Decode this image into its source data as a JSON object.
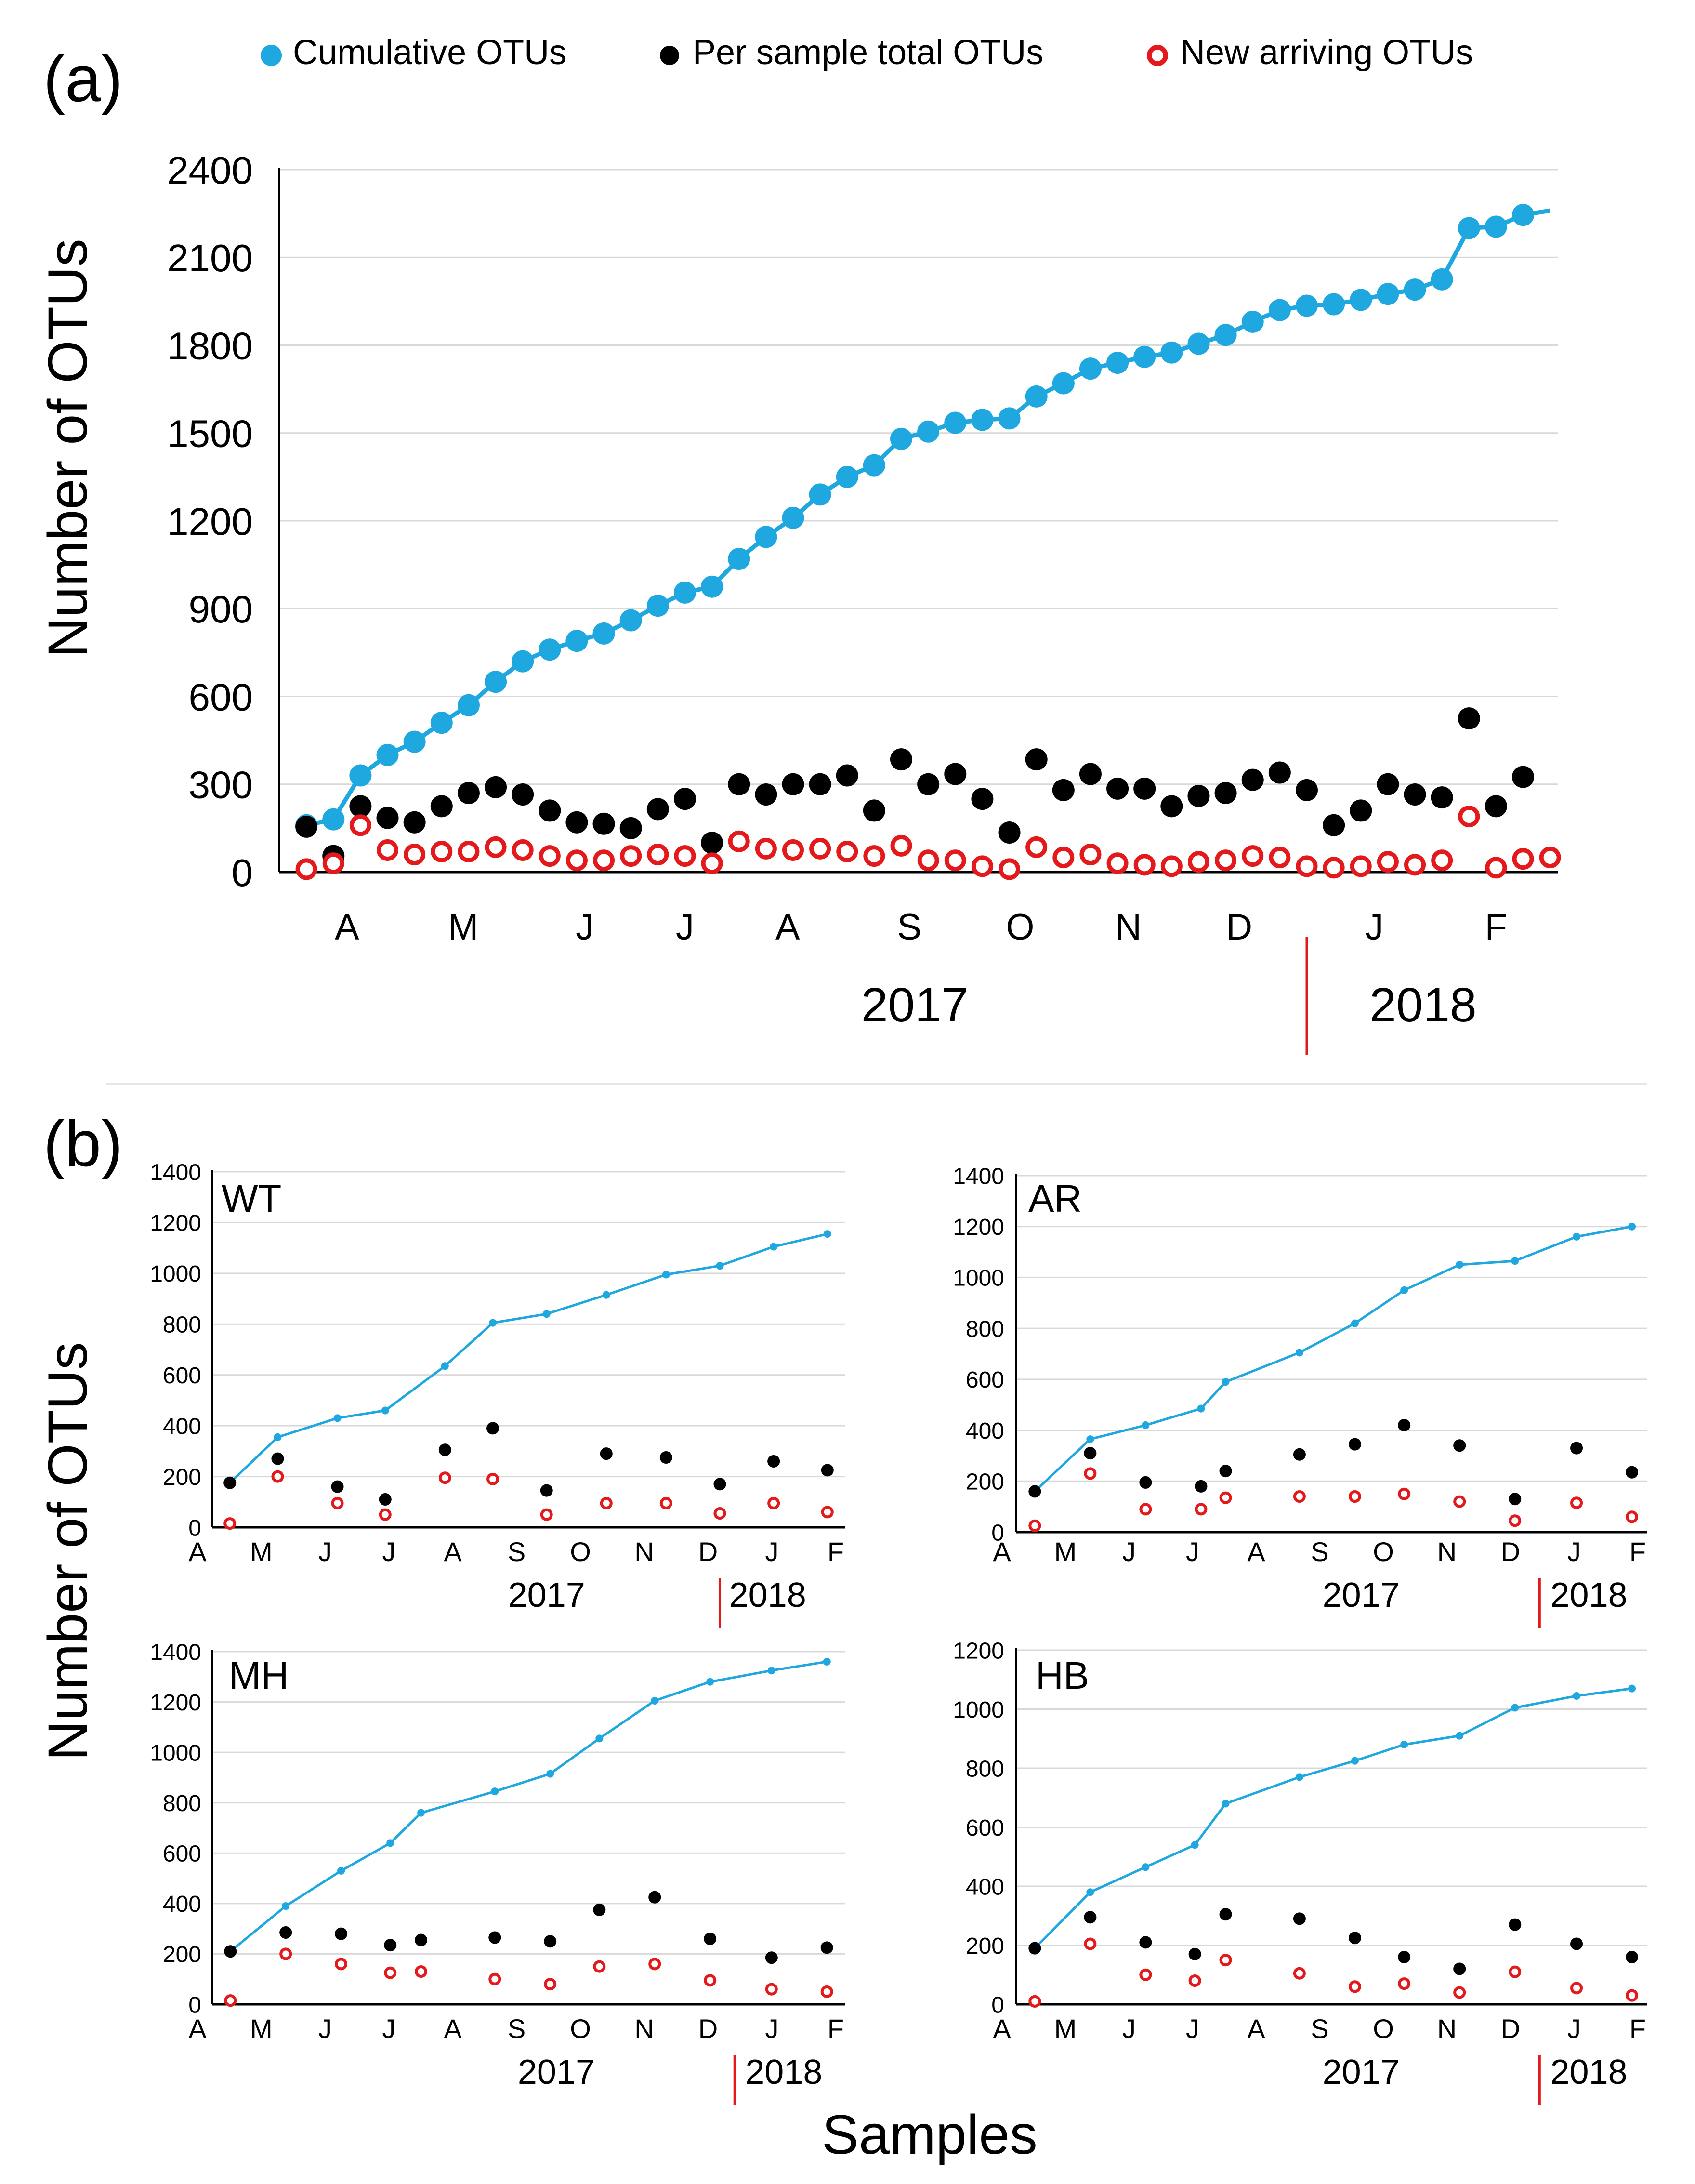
{
  "figure": {
    "panel_a_label": "(a)",
    "panel_b_label": "(b)",
    "xlabel_b": "Samples",
    "ylabel_a": "Number of OTUs",
    "ylabel_b": "Number of OTUs"
  },
  "legend": {
    "cumulative": "Cumulative OTUs",
    "per_sample": "Per sample total OTUs",
    "new_arriving": "New arriving OTUs"
  },
  "colors": {
    "cumulative": "#1fa7df",
    "per_sample": "#000000",
    "new_arriving": "#e3191c",
    "grid": "#d9d9d9",
    "year_divider": "#e3191c"
  },
  "chart_data": [
    {
      "id": "a",
      "type": "line",
      "title": "",
      "xlabel": "",
      "ylabel": "Number of OTUs",
      "ylim": [
        0,
        2400
      ],
      "yticks": [
        0,
        300,
        600,
        900,
        1200,
        1500,
        1800,
        2100,
        2400
      ],
      "n_samples": 47,
      "month_ticks": [
        {
          "label": "A",
          "pos": 2.5
        },
        {
          "label": "M",
          "pos": 6.8
        },
        {
          "label": "J",
          "pos": 11.3
        },
        {
          "label": "J",
          "pos": 15.0
        },
        {
          "label": "A",
          "pos": 18.8
        },
        {
          "label": "S",
          "pos": 23.3
        },
        {
          "label": "O",
          "pos": 27.4
        },
        {
          "label": "N",
          "pos": 31.4
        },
        {
          "label": "D",
          "pos": 35.5
        },
        {
          "label": "J",
          "pos": 40.5
        },
        {
          "label": "F",
          "pos": 45.0
        }
      ],
      "years": [
        {
          "label": "2017",
          "pos": 23.5
        },
        {
          "label": "2018",
          "pos": 42.3
        }
      ],
      "year_divider": 38.0,
      "series": [
        {
          "name": "Cumulative OTUs",
          "style": "line",
          "x": [
            1,
            2,
            3,
            4,
            5,
            6,
            7,
            8,
            9,
            10,
            11,
            12,
            13,
            14,
            15,
            16,
            17,
            18,
            19,
            20,
            21,
            22,
            23,
            24,
            25,
            26,
            27,
            28,
            29,
            30,
            31,
            32,
            33,
            34,
            35,
            36,
            37,
            38,
            39,
            40,
            41,
            42,
            43,
            44,
            45,
            46,
            47
          ],
          "values": [
            160,
            180,
            330,
            400,
            445,
            510,
            570,
            650,
            720,
            760,
            790,
            815,
            860,
            910,
            955,
            975,
            1070,
            1145,
            1210,
            1290,
            1350,
            1390,
            1480,
            1505,
            1535,
            1545,
            1550,
            1625,
            1670,
            1720,
            1740,
            1760,
            1775,
            1805,
            1835,
            1880,
            1920,
            1935,
            1940,
            1955,
            1975,
            1990,
            2025,
            2200,
            2205,
            2245,
            2260
          ]
        },
        {
          "name": "Per sample total OTUs",
          "style": "dot",
          "x": [
            1,
            2,
            3,
            4,
            5,
            6,
            7,
            8,
            9,
            10,
            11,
            12,
            13,
            14,
            15,
            16,
            17,
            18,
            19,
            20,
            21,
            22,
            23,
            24,
            25,
            26,
            27,
            28,
            29,
            30,
            31,
            32,
            33,
            34,
            35,
            36,
            37,
            38,
            39,
            40,
            41,
            42,
            43,
            44,
            45,
            46
          ],
          "values": [
            155,
            55,
            225,
            185,
            170,
            225,
            270,
            290,
            265,
            210,
            170,
            165,
            150,
            215,
            250,
            100,
            300,
            265,
            300,
            300,
            330,
            210,
            385,
            300,
            335,
            250,
            135,
            385,
            280,
            335,
            285,
            285,
            225,
            260,
            270,
            315,
            340,
            280,
            160,
            210,
            300,
            265,
            255,
            525,
            225,
            325
          ]
        },
        {
          "name": "New arriving OTUs",
          "style": "ring",
          "x": [
            1,
            2,
            3,
            4,
            5,
            6,
            7,
            8,
            9,
            10,
            11,
            12,
            13,
            14,
            15,
            16,
            17,
            18,
            19,
            20,
            21,
            22,
            23,
            24,
            25,
            26,
            27,
            28,
            29,
            30,
            31,
            32,
            33,
            34,
            35,
            36,
            37,
            38,
            39,
            40,
            41,
            42,
            43,
            44,
            45,
            46,
            47
          ],
          "values": [
            10,
            30,
            160,
            75,
            60,
            70,
            70,
            85,
            75,
            55,
            40,
            40,
            55,
            60,
            55,
            30,
            105,
            80,
            75,
            80,
            70,
            55,
            90,
            40,
            40,
            20,
            10,
            85,
            50,
            60,
            30,
            25,
            20,
            35,
            40,
            55,
            50,
            20,
            15,
            20,
            35,
            25,
            40,
            190,
            15,
            45,
            50
          ]
        }
      ]
    },
    {
      "id": "WT",
      "type": "line",
      "title": "WT",
      "ylim": [
        0,
        1400
      ],
      "yticks": [
        0,
        200,
        400,
        600,
        800,
        1000,
        1200,
        1400
      ],
      "months": [
        "A",
        "M",
        "J",
        "J",
        "A",
        "S",
        "O",
        "N",
        "D",
        "J",
        "F"
      ],
      "years": [
        {
          "label": "2017",
          "pos": 5.6
        },
        {
          "label": "2018",
          "pos": 9.3
        }
      ],
      "year_divider": 8.5,
      "series": [
        {
          "name": "Cumulative OTUs",
          "style": "line",
          "x": [
            0.3,
            1.1,
            2.1,
            2.9,
            3.9,
            4.7,
            5.6,
            6.6,
            7.6,
            8.5,
            9.4,
            10.3
          ],
          "values": [
            175,
            355,
            430,
            460,
            635,
            805,
            840,
            915,
            995,
            1030,
            1105,
            1155
          ]
        },
        {
          "name": "Per sample total OTUs",
          "style": "dot",
          "x": [
            0.3,
            1.1,
            2.1,
            2.9,
            3.9,
            4.7,
            5.6,
            6.6,
            7.6,
            8.5,
            9.4,
            10.3
          ],
          "values": [
            175,
            270,
            160,
            110,
            305,
            390,
            145,
            290,
            275,
            170,
            260,
            225
          ]
        },
        {
          "name": "New arriving OTUs",
          "style": "ring",
          "x": [
            0.3,
            1.1,
            2.1,
            2.9,
            3.9,
            4.7,
            5.6,
            6.6,
            7.6,
            8.5,
            9.4,
            10.3
          ],
          "values": [
            15,
            200,
            95,
            50,
            195,
            190,
            50,
            95,
            95,
            55,
            95,
            60
          ]
        }
      ]
    },
    {
      "id": "AR",
      "type": "line",
      "title": "AR",
      "ylim": [
        0,
        1400
      ],
      "yticks": [
        0,
        200,
        400,
        600,
        800,
        1000,
        1200,
        1400
      ],
      "months": [
        "A",
        "M",
        "J",
        "J",
        "A",
        "S",
        "O",
        "N",
        "D",
        "J",
        "F"
      ],
      "years": [
        {
          "label": "2017",
          "pos": 5.6
        },
        {
          "label": "2018",
          "pos": 9.3
        }
      ],
      "year_divider": 8.5,
      "series": [
        {
          "name": "Cumulative OTUs",
          "style": "line",
          "x": [
            0.3,
            1.2,
            2.1,
            3.0,
            3.4,
            4.6,
            5.5,
            6.3,
            7.2,
            8.1,
            9.1,
            10.0
          ],
          "values": [
            160,
            365,
            420,
            485,
            590,
            705,
            820,
            950,
            1050,
            1065,
            1160,
            1200
          ]
        },
        {
          "name": "Per sample total OTUs",
          "style": "dot",
          "x": [
            0.3,
            1.2,
            2.1,
            3.0,
            3.4,
            4.6,
            5.5,
            6.3,
            7.2,
            8.1,
            9.1,
            10.0
          ],
          "values": [
            160,
            310,
            195,
            180,
            240,
            305,
            345,
            420,
            340,
            130,
            330,
            235
          ]
        },
        {
          "name": "New arriving OTUs",
          "style": "ring",
          "x": [
            0.3,
            1.2,
            2.1,
            3.0,
            3.4,
            4.6,
            5.5,
            6.3,
            7.2,
            8.1,
            9.1,
            10.0
          ],
          "values": [
            25,
            230,
            90,
            90,
            135,
            140,
            140,
            150,
            120,
            45,
            115,
            60
          ]
        }
      ]
    },
    {
      "id": "MH",
      "type": "line",
      "title": "MH",
      "ylim": [
        0,
        1400
      ],
      "yticks": [
        0,
        200,
        400,
        600,
        800,
        1000,
        1200,
        1400
      ],
      "months": [
        "A",
        "M",
        "J",
        "J",
        "A",
        "S",
        "O",
        "N",
        "D",
        "J",
        "F"
      ],
      "years": [
        {
          "label": "2017",
          "pos": 5.6
        },
        {
          "label": "2018",
          "pos": 9.3
        }
      ],
      "year_divider": 8.5,
      "series": [
        {
          "name": "Cumulative OTUs",
          "style": "line",
          "x": [
            0.3,
            1.2,
            2.1,
            2.9,
            3.4,
            4.6,
            5.5,
            6.3,
            7.2,
            8.1,
            9.1,
            10.0
          ],
          "values": [
            210,
            390,
            530,
            640,
            760,
            845,
            915,
            1055,
            1205,
            1280,
            1325,
            1360
          ]
        },
        {
          "name": "Per sample total OTUs",
          "style": "dot",
          "x": [
            0.3,
            1.2,
            2.1,
            2.9,
            3.4,
            4.6,
            5.5,
            6.3,
            7.2,
            8.1,
            9.1,
            10.0
          ],
          "values": [
            210,
            285,
            280,
            235,
            255,
            265,
            250,
            375,
            425,
            260,
            185,
            225
          ]
        },
        {
          "name": "New arriving OTUs",
          "style": "ring",
          "x": [
            0.3,
            1.2,
            2.1,
            2.9,
            3.4,
            4.6,
            5.5,
            6.3,
            7.2,
            8.1,
            9.1,
            10.0
          ],
          "values": [
            15,
            200,
            160,
            125,
            130,
            100,
            80,
            150,
            160,
            95,
            60,
            50
          ]
        }
      ]
    },
    {
      "id": "HB",
      "type": "line",
      "title": "HB",
      "ylim": [
        0,
        1200
      ],
      "yticks": [
        0,
        200,
        400,
        600,
        800,
        1000,
        1200
      ],
      "months": [
        "A",
        "M",
        "J",
        "J",
        "A",
        "S",
        "O",
        "N",
        "D",
        "J",
        "F"
      ],
      "years": [
        {
          "label": "2017",
          "pos": 5.6
        },
        {
          "label": "2018",
          "pos": 9.3
        }
      ],
      "year_divider": 8.5,
      "series": [
        {
          "name": "Cumulative OTUs",
          "style": "line",
          "x": [
            0.3,
            1.2,
            2.1,
            2.9,
            3.4,
            4.6,
            5.5,
            6.3,
            7.2,
            8.1,
            9.1,
            10.0
          ],
          "values": [
            190,
            380,
            465,
            540,
            680,
            770,
            825,
            880,
            910,
            1005,
            1045,
            1070
          ]
        },
        {
          "name": "Per sample total OTUs",
          "style": "dot",
          "x": [
            0.3,
            1.2,
            2.1,
            2.9,
            3.4,
            4.6,
            5.5,
            6.3,
            7.2,
            8.1,
            9.1,
            10.0
          ],
          "values": [
            190,
            295,
            210,
            170,
            305,
            290,
            225,
            160,
            120,
            270,
            205,
            160
          ]
        },
        {
          "name": "New arriving OTUs",
          "style": "ring",
          "x": [
            0.3,
            1.2,
            2.1,
            2.9,
            3.4,
            4.6,
            5.5,
            6.3,
            7.2,
            8.1,
            9.1,
            10.0
          ],
          "values": [
            10,
            205,
            100,
            80,
            150,
            105,
            60,
            70,
            40,
            110,
            55,
            30
          ]
        }
      ]
    }
  ]
}
